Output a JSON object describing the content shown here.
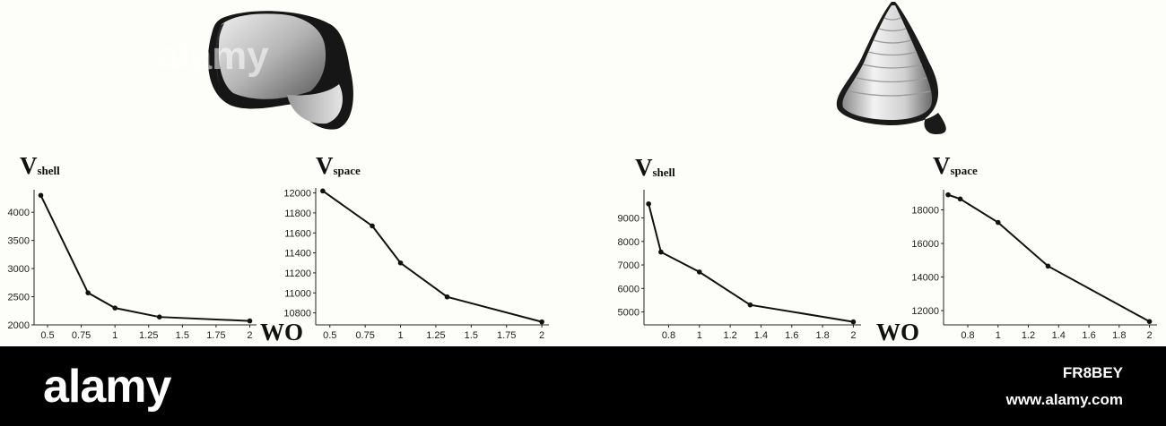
{
  "figure": {
    "watermark": "alamy",
    "footer": {
      "logo": "alamy",
      "image_id": "FR8BEY",
      "site": "www.alamy.com"
    },
    "axis_label": "WO"
  },
  "chart_data": [
    {
      "type": "line",
      "title": "V",
      "title_sub": "shell",
      "x": [
        0.45,
        0.8,
        1.0,
        1.33,
        2.0
      ],
      "y": [
        4300,
        2570,
        2300,
        2140,
        2070
      ],
      "xticks": [
        "0.5",
        "0.75",
        "1",
        "1.25",
        "1.5",
        "1.75",
        "2"
      ],
      "xtick_values": [
        0.5,
        0.75,
        1,
        1.25,
        1.5,
        1.75,
        2
      ],
      "yticks": [
        "2000",
        "2500",
        "3000",
        "3500",
        "4000"
      ],
      "ytick_values": [
        2000,
        2500,
        3000,
        3500,
        4000
      ],
      "xlim": [
        0.4,
        2.05
      ],
      "ylim": [
        2000,
        4400
      ]
    },
    {
      "type": "line",
      "title": "V",
      "title_sub": "space",
      "x": [
        0.45,
        0.8,
        1.0,
        1.33,
        2.0
      ],
      "y": [
        12020,
        11670,
        11300,
        10960,
        10710
      ],
      "xticks": [
        "0.5",
        "0.75",
        "1",
        "1.25",
        "1.5",
        "1.75",
        "2"
      ],
      "xtick_values": [
        0.5,
        0.75,
        1,
        1.25,
        1.5,
        1.75,
        2
      ],
      "yticks": [
        "10800",
        "11000",
        "11200",
        "11400",
        "11600",
        "11800",
        "12000"
      ],
      "ytick_values": [
        10800,
        11000,
        11200,
        11400,
        11600,
        11800,
        12000
      ],
      "xlim": [
        0.4,
        2.05
      ],
      "ylim": [
        10680,
        12050
      ]
    },
    {
      "type": "line",
      "title": "V",
      "title_sub": "shell",
      "x": [
        0.67,
        0.75,
        1.0,
        1.33,
        2.0
      ],
      "y": [
        9600,
        7550,
        6700,
        5300,
        4580
      ],
      "xticks": [
        "0.8",
        "1",
        "1.2",
        "1.4",
        "1.6",
        "1.8",
        "2"
      ],
      "xtick_values": [
        0.8,
        1.0,
        1.2,
        1.4,
        1.6,
        1.8,
        2.0
      ],
      "yticks": [
        "5000",
        "6000",
        "7000",
        "8000",
        "9000"
      ],
      "ytick_values": [
        5000,
        6000,
        7000,
        8000,
        9000
      ],
      "xlim": [
        0.64,
        2.05
      ],
      "ylim": [
        4450,
        10200
      ]
    },
    {
      "type": "line",
      "title": "V",
      "title_sub": "space",
      "x": [
        0.67,
        0.75,
        1.0,
        1.33,
        2.0
      ],
      "y": [
        18900,
        18650,
        17250,
        14650,
        11350
      ],
      "xticks": [
        "0.8",
        "1",
        "1.2",
        "1.4",
        "1.6",
        "1.8",
        "2"
      ],
      "xtick_values": [
        0.8,
        1.0,
        1.2,
        1.4,
        1.6,
        1.8,
        2.0
      ],
      "yticks": [
        "12000",
        "14000",
        "16000",
        "18000"
      ],
      "ytick_values": [
        12000,
        14000,
        16000,
        18000
      ],
      "xlim": [
        0.64,
        2.05
      ],
      "ylim": [
        11150,
        19200
      ]
    }
  ]
}
